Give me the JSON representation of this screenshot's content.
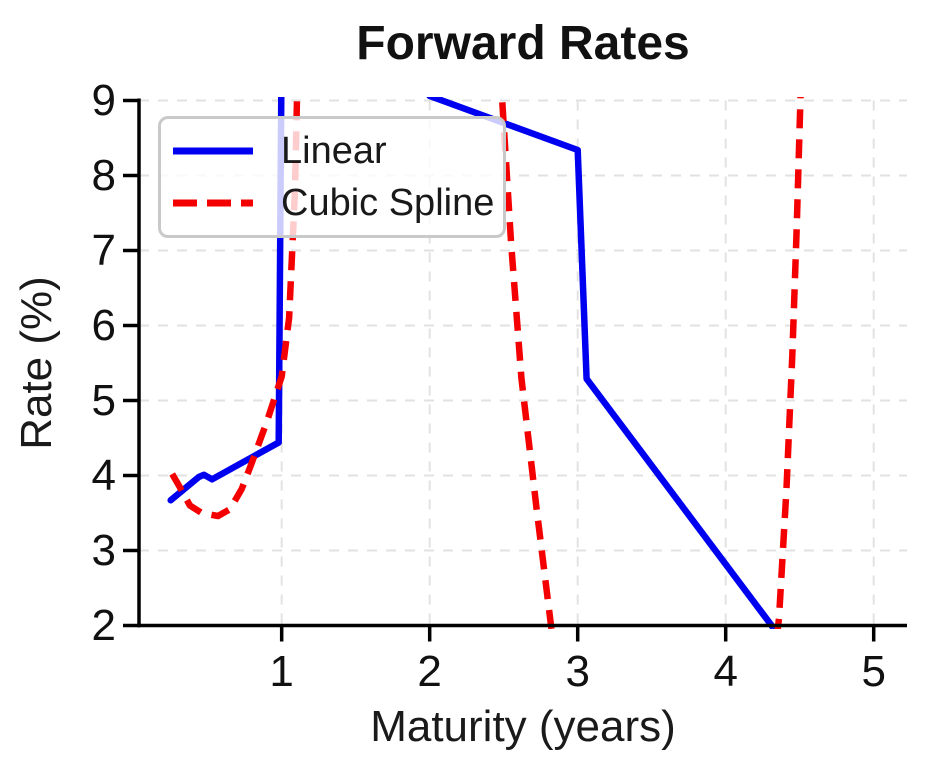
{
  "title": "Forward Rates",
  "axes": {
    "xlabel": "Maturity (years)",
    "ylabel": "Rate (%)",
    "x_tick_labels": [
      "1",
      "2",
      "3",
      "4",
      "5"
    ],
    "y_tick_labels": [
      "2",
      "3",
      "4",
      "5",
      "6",
      "7",
      "8",
      "9"
    ]
  },
  "legend": {
    "items": [
      {
        "label": "Linear",
        "color": "#0000f0",
        "style": "solid"
      },
      {
        "label": "Cubic Spline",
        "color": "#f50000",
        "style": "dashed"
      }
    ]
  },
  "colors": {
    "grid": "#e2e2e2",
    "spine": "#000000",
    "text": "#1a1a1a",
    "legend_border": "#c9c9c9"
  },
  "chart_data": {
    "type": "line",
    "title": "Forward Rates",
    "xlabel": "Maturity (years)",
    "ylabel": "Rate (%)",
    "xlim": [
      0.036,
      5.225
    ],
    "ylim": [
      2,
      9
    ],
    "x_ticks": [
      1,
      2,
      3,
      4,
      5
    ],
    "y_ticks": [
      2,
      3,
      4,
      5,
      6,
      7,
      8,
      9
    ],
    "grid": true,
    "grid_style": "dashed",
    "legend_position": "upper left",
    "series": [
      {
        "name": "Linear",
        "color": "#0000f0",
        "style": "solid",
        "points": [
          [
            0.25,
            3.67
          ],
          [
            0.44,
            3.98
          ],
          [
            0.475,
            4.01
          ],
          [
            0.53,
            3.95
          ],
          [
            0.98,
            4.44
          ],
          [
            1.01,
            12.5
          ],
          [
            2.0,
            9.06
          ],
          [
            3.0,
            8.34
          ],
          [
            3.06,
            5.29
          ],
          [
            4.31,
            2.0
          ],
          [
            5.0,
            0.18
          ]
        ]
      },
      {
        "name": "Cubic Spline",
        "color": "#f50000",
        "style": "dashed",
        "points": [
          [
            0.26,
            4.02
          ],
          [
            0.31,
            3.85
          ],
          [
            0.38,
            3.6
          ],
          [
            0.46,
            3.5
          ],
          [
            0.57,
            3.46
          ],
          [
            0.65,
            3.55
          ],
          [
            0.73,
            3.82
          ],
          [
            0.8,
            4.18
          ],
          [
            0.9,
            4.72
          ],
          [
            1.0,
            5.32
          ],
          [
            1.05,
            6.1
          ],
          [
            1.09,
            7.8
          ],
          [
            1.12,
            10.5
          ],
          [
            2.44,
            10.6
          ],
          [
            2.49,
            9.0
          ],
          [
            2.55,
            7.1
          ],
          [
            2.62,
            5.3
          ],
          [
            2.72,
            3.6
          ],
          [
            2.82,
            2.0
          ],
          [
            2.87,
            1.3
          ],
          [
            4.31,
            1.2
          ],
          [
            4.36,
            2.1
          ],
          [
            4.41,
            3.8
          ],
          [
            4.45,
            5.6
          ],
          [
            4.48,
            7.3
          ],
          [
            4.505,
            9.0
          ],
          [
            4.53,
            10.5
          ]
        ]
      }
    ]
  }
}
